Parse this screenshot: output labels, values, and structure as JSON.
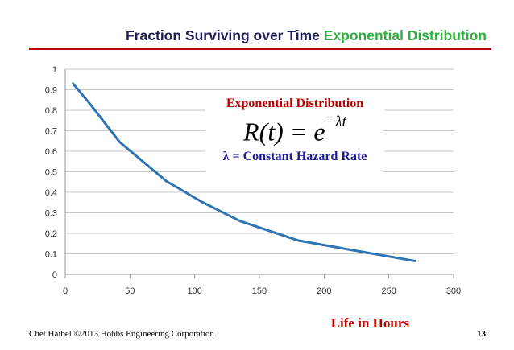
{
  "slide": {
    "title_main": "Fraction Surviving over Time",
    "title_accent": "Exponential Distribution",
    "footer": "Chet Haibel  ©2013 Hobbs Engineering Corporation",
    "page_number": "13"
  },
  "overlay": {
    "caption": "Exponential Distribution",
    "formula_lhs": "R(t) = e",
    "formula_exponent": "−λt",
    "note": "λ = Constant Hazard Rate"
  },
  "colors": {
    "line": "#2e75b6",
    "grid": "#c8c8c8",
    "title_accent": "#2eae3a",
    "title_rule": "#c00000",
    "caption": "#c00000",
    "note": "#1f1f9a"
  },
  "chart_data": {
    "type": "line",
    "xlabel": "Life in Hours",
    "ylabel": "",
    "xlim": [
      0,
      300
    ],
    "ylim": [
      0,
      1
    ],
    "xticks": [
      "0",
      "50",
      "100",
      "150",
      "200",
      "250",
      "300"
    ],
    "yticks": [
      "0",
      "0.1",
      "0.2",
      "0.3",
      "0.4",
      "0.5",
      "0.6",
      "0.7",
      "0.8",
      "0.9",
      "1"
    ],
    "grid": true,
    "series": [
      {
        "x": [
          6,
          18,
          42,
          78,
          105,
          135,
          180,
          220,
          270
        ],
        "y": [
          0.93,
          0.84,
          0.645,
          0.455,
          0.355,
          0.26,
          0.165,
          0.12,
          0.065
        ]
      }
    ]
  }
}
